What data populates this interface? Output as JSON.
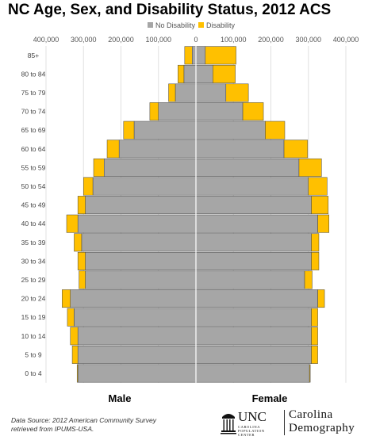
{
  "chart_data": {
    "type": "bar",
    "title": "NC Age, Sex, and Disability Status, 2012 ACS",
    "categories": [
      "85+",
      "80 to 84",
      "75 to 79",
      "70 to 74",
      "65 to 69",
      "60 to 64",
      "55 to 59",
      "50 to 54",
      "45 to 49",
      "40 to 44",
      "35 to 39",
      "30 to 34",
      "25 to 29",
      "20 to 24",
      "15 to 19",
      "10 to 14",
      "5 to 9",
      "0 to 4"
    ],
    "xlim": [
      -400000,
      400000
    ],
    "x_ticks": [
      "400,000",
      "300,000",
      "200,000",
      "100,000",
      "0",
      "100,000",
      "200,000",
      "300,000",
      "400,000"
    ],
    "legend": {
      "position": "top-center",
      "entries": [
        "No Disability",
        "Disability"
      ]
    },
    "colors": {
      "No Disability": "#a6a6a6",
      "Disability": "#ffc000"
    },
    "series": [
      {
        "name": "No Disability",
        "side": "Male",
        "values": [
          10000,
          32000,
          55000,
          100000,
          165000,
          205000,
          245000,
          275000,
          295000,
          315000,
          305000,
          295000,
          295000,
          335000,
          325000,
          315000,
          315000,
          315000
        ]
      },
      {
        "name": "Disability",
        "side": "Male",
        "values": [
          20000,
          16000,
          18000,
          23000,
          28000,
          32000,
          28000,
          25000,
          20000,
          30000,
          20000,
          20000,
          17000,
          22000,
          18000,
          20000,
          15000,
          2000
        ]
      },
      {
        "name": "No Disability",
        "side": "Female",
        "values": [
          25000,
          45000,
          80000,
          125000,
          185000,
          235000,
          275000,
          300000,
          308000,
          325000,
          308000,
          308000,
          290000,
          325000,
          308000,
          308000,
          308000,
          303000
        ]
      },
      {
        "name": "Disability",
        "side": "Female",
        "values": [
          82000,
          60000,
          60000,
          55000,
          52000,
          63000,
          60000,
          50000,
          45000,
          30000,
          20000,
          20000,
          20000,
          18000,
          17000,
          17000,
          17000,
          2000
        ]
      }
    ]
  },
  "sex_labels": {
    "male": "Male",
    "female": "Female"
  },
  "source_lines": [
    "Data Source: 2012 American Community Survey",
    "retrieved from IPUMS-USA."
  ],
  "logo": {
    "unc": "UNC",
    "sub_lines": [
      "CAROLINA",
      "POPULATION",
      "CENTER"
    ],
    "cd_lines": [
      "Carolina",
      "Demography"
    ]
  }
}
